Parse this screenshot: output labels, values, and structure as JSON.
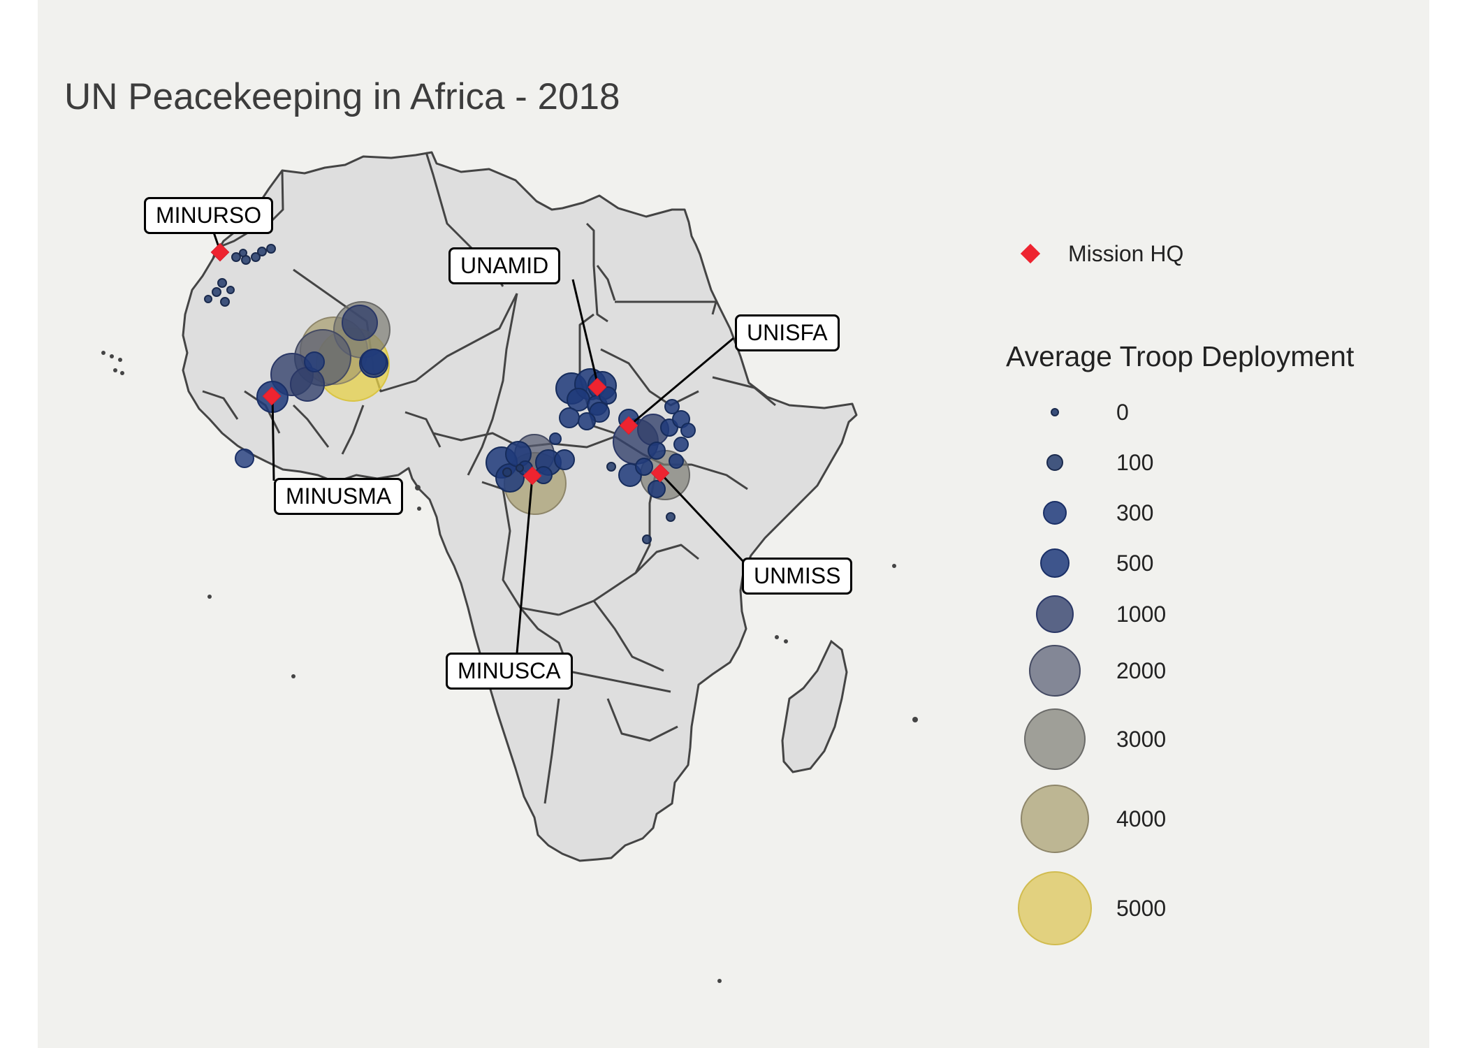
{
  "title": "UN Peacekeeping in Africa - 2018",
  "legend": {
    "hq_label": "Mission HQ",
    "size_title": "Average Troop Deployment",
    "size_breaks": [
      {
        "label": "0",
        "value": 0,
        "color": "#233b6b"
      },
      {
        "label": "100",
        "value": 100,
        "color": "#233b6b"
      },
      {
        "label": "300",
        "value": 300,
        "color": "#1f3a7a"
      },
      {
        "label": "500",
        "value": 500,
        "color": "#1f3a7a"
      },
      {
        "label": "1000",
        "value": 1000,
        "color": "#33416b"
      },
      {
        "label": "2000",
        "value": 2000,
        "color": "#545a70"
      },
      {
        "label": "3000",
        "value": 3000,
        "color": "#7c7c74"
      },
      {
        "label": "4000",
        "value": 4000,
        "color": "#a69d6c"
      },
      {
        "label": "5000",
        "value": 5000,
        "color": "#dcc65a"
      }
    ]
  },
  "missions": [
    {
      "name": "MINURSO"
    },
    {
      "name": "UNAMID"
    },
    {
      "name": "UNISFA"
    },
    {
      "name": "MINUSMA"
    },
    {
      "name": "UNMISS"
    },
    {
      "name": "MINUSCA"
    }
  ],
  "colors": {
    "hq": "#ee2430",
    "land": "#dedede",
    "border": "#444444",
    "background": "#f1f1ee"
  }
}
